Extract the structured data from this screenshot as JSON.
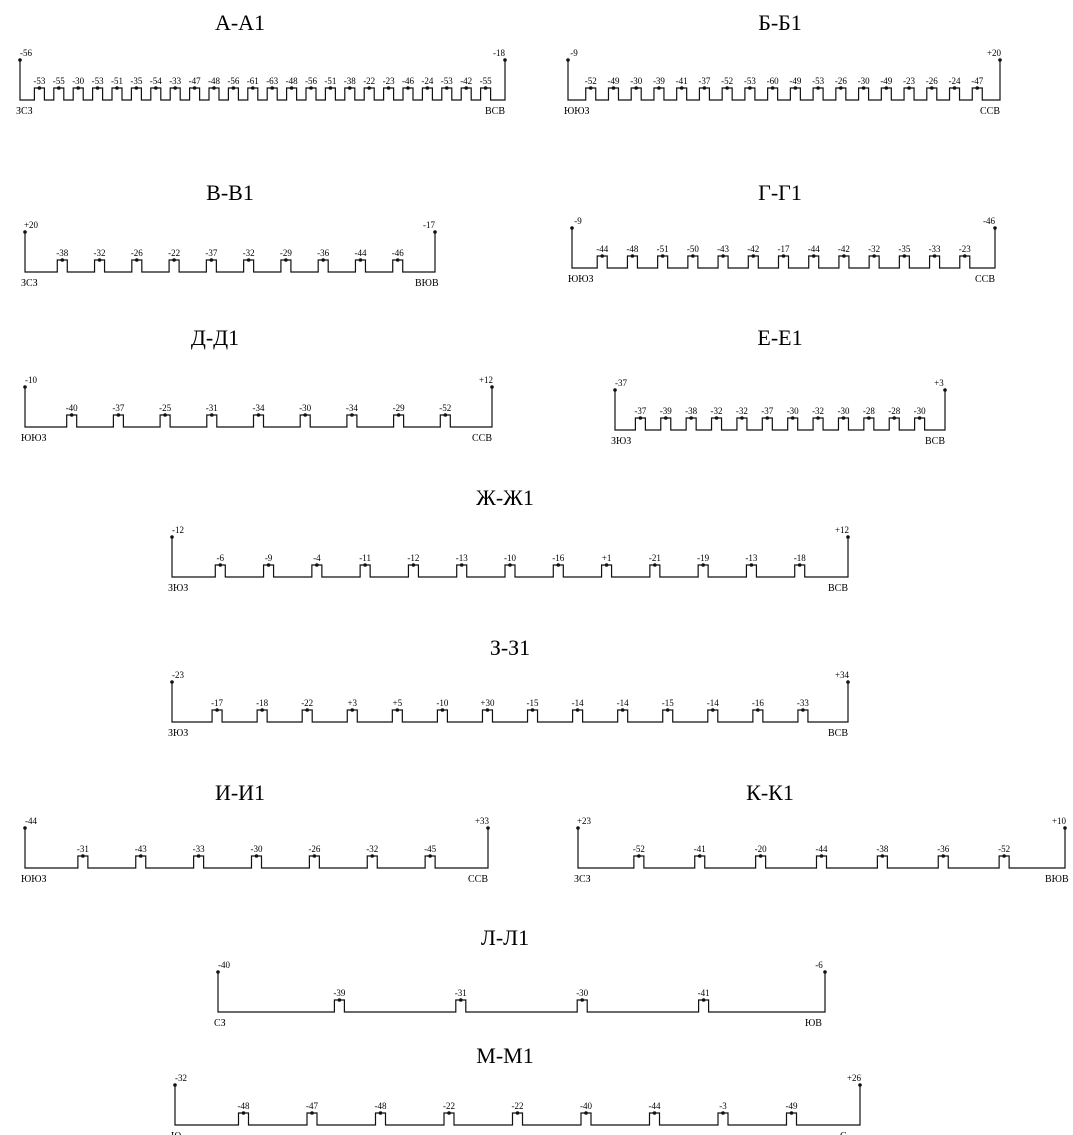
{
  "sections": [
    {
      "title": "А-А1",
      "left": "ЗСЗ",
      "right": "ВСВ",
      "marks": [
        "-56",
        "-53",
        "-55",
        "-30",
        "-53",
        "-51",
        "-35",
        "-54",
        "-33",
        "-47",
        "-48",
        "-56",
        "-61",
        "-63",
        "-48",
        "-56",
        "-51",
        "-38",
        "-22",
        "-23",
        "-46",
        "-24",
        "-53",
        "-42",
        "-55",
        "-18"
      ]
    },
    {
      "title": "Б-Б1",
      "left": "ЮЮЗ",
      "right": "ССВ",
      "marks": [
        "-9",
        "-52",
        "-49",
        "-30",
        "-39",
        "-41",
        "-37",
        "-52",
        "-53",
        "-60",
        "-49",
        "-53",
        "-26",
        "-30",
        "-49",
        "-23",
        "-26",
        "-24",
        "-47",
        "+20"
      ]
    },
    {
      "title": "В-В1",
      "left": "ЗСЗ",
      "right": "ВЮВ",
      "marks": [
        "+20",
        "-38",
        "-32",
        "-26",
        "-22",
        "-37",
        "-32",
        "-29",
        "-36",
        "-44",
        "-46",
        "-17"
      ]
    },
    {
      "title": "Г-Г1",
      "left": "ЮЮЗ",
      "right": "ССВ",
      "marks": [
        "-9",
        "-44",
        "-48",
        "-51",
        "-50",
        "-43",
        "-42",
        "-17",
        "-44",
        "-42",
        "-32",
        "-35",
        "-33",
        "-23",
        "-46"
      ]
    },
    {
      "title": "Д-Д1",
      "left": "ЮЮЗ",
      "right": "ССВ",
      "marks": [
        "-10",
        "-40",
        "-37",
        "-25",
        "-31",
        "-34",
        "-30",
        "-34",
        "-29",
        "-52",
        "+12"
      ]
    },
    {
      "title": "Е-Е1",
      "left": "ЗЮЗ",
      "right": "ВСВ",
      "marks": [
        "-37",
        "-37",
        "-39",
        "-38",
        "-32",
        "-32",
        "-37",
        "-30",
        "-32",
        "-30",
        "-28",
        "-28",
        "-30",
        "+3"
      ]
    },
    {
      "title": "Ж-Ж1",
      "left": "ЗЮЗ",
      "right": "ВСВ",
      "marks": [
        "-12",
        "-6",
        "-9",
        "-4",
        "-11",
        "-12",
        "-13",
        "-10",
        "-16",
        "+1",
        "-21",
        "-19",
        "-13",
        "-18",
        "+12"
      ]
    },
    {
      "title": "З-З1",
      "left": "ЗЮЗ",
      "right": "ВСВ",
      "marks": [
        "-23",
        "-17",
        "-18",
        "-22",
        "+3",
        "+5",
        "-10",
        "+30",
        "-15",
        "-14",
        "-14",
        "-15",
        "-14",
        "-16",
        "-33",
        "+34"
      ]
    },
    {
      "title": "И-И1",
      "left": "ЮЮЗ",
      "right": "ССВ",
      "marks": [
        "-44",
        "-31",
        "-43",
        "-33",
        "-30",
        "-26",
        "-32",
        "-45",
        "+33"
      ]
    },
    {
      "title": "К-К1",
      "left": "ЗСЗ",
      "right": "ВЮВ",
      "marks": [
        "+23",
        "-52",
        "-41",
        "-20",
        "-44",
        "-38",
        "-36",
        "-52",
        "+10"
      ]
    },
    {
      "title": "Л-Л1",
      "left": "СЗ",
      "right": "ЮВ",
      "marks": [
        "-40",
        "-39",
        "-31",
        "-30",
        "-41",
        "-6"
      ]
    },
    {
      "title": "М-М1",
      "left": "Ю",
      "right": "С",
      "marks": [
        "-32",
        "-48",
        "-47",
        "-48",
        "-22",
        "-22",
        "-40",
        "-44",
        "-3",
        "-49",
        "+26"
      ]
    }
  ]
}
